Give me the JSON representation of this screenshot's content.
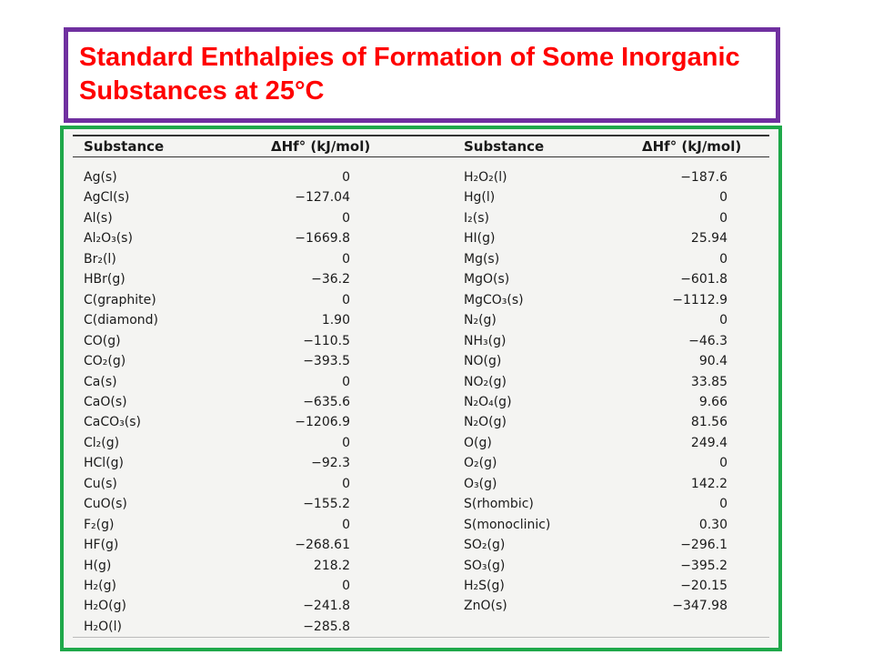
{
  "title": "Standard Enthalpies of Formation of Some Inorganic Substances at 25°C",
  "table": {
    "headers": [
      "Substance",
      "ΔHf° (kJ/mol)",
      "Substance",
      "ΔHf° (kJ/mol)"
    ],
    "left": [
      {
        "substance": "Ag(s)",
        "value": "0"
      },
      {
        "substance": "AgCl(s)",
        "value": "−127.04"
      },
      {
        "substance": "Al(s)",
        "value": "0"
      },
      {
        "substance": "Al₂O₃(s)",
        "value": "−1669.8"
      },
      {
        "substance": "Br₂(l)",
        "value": "0"
      },
      {
        "substance": "HBr(g)",
        "value": "−36.2"
      },
      {
        "substance": "C(graphite)",
        "value": "0"
      },
      {
        "substance": "C(diamond)",
        "value": "1.90"
      },
      {
        "substance": "CO(g)",
        "value": "−110.5"
      },
      {
        "substance": "CO₂(g)",
        "value": "−393.5"
      },
      {
        "substance": "Ca(s)",
        "value": "0"
      },
      {
        "substance": "CaO(s)",
        "value": "−635.6"
      },
      {
        "substance": "CaCO₃(s)",
        "value": "−1206.9"
      },
      {
        "substance": "Cl₂(g)",
        "value": "0"
      },
      {
        "substance": "HCl(g)",
        "value": "−92.3"
      },
      {
        "substance": "Cu(s)",
        "value": "0"
      },
      {
        "substance": "CuO(s)",
        "value": "−155.2"
      },
      {
        "substance": "F₂(g)",
        "value": "0"
      },
      {
        "substance": "HF(g)",
        "value": "−268.61"
      },
      {
        "substance": "H(g)",
        "value": "218.2"
      },
      {
        "substance": "H₂(g)",
        "value": "0"
      },
      {
        "substance": "H₂O(g)",
        "value": "−241.8"
      },
      {
        "substance": "H₂O(l)",
        "value": "−285.8"
      }
    ],
    "right": [
      {
        "substance": "H₂O₂(l)",
        "value": "−187.6"
      },
      {
        "substance": "Hg(l)",
        "value": "0"
      },
      {
        "substance": "I₂(s)",
        "value": "0"
      },
      {
        "substance": "HI(g)",
        "value": "25.94"
      },
      {
        "substance": "Mg(s)",
        "value": "0"
      },
      {
        "substance": "MgO(s)",
        "value": "−601.8"
      },
      {
        "substance": "MgCO₃(s)",
        "value": "−1112.9"
      },
      {
        "substance": "N₂(g)",
        "value": "0"
      },
      {
        "substance": "NH₃(g)",
        "value": "−46.3"
      },
      {
        "substance": "NO(g)",
        "value": "90.4"
      },
      {
        "substance": "NO₂(g)",
        "value": "33.85"
      },
      {
        "substance": "N₂O₄(g)",
        "value": "9.66"
      },
      {
        "substance": "N₂O(g)",
        "value": "81.56"
      },
      {
        "substance": "O(g)",
        "value": "249.4"
      },
      {
        "substance": "O₂(g)",
        "value": "0"
      },
      {
        "substance": "O₃(g)",
        "value": "142.2"
      },
      {
        "substance": "S(rhombic)",
        "value": "0"
      },
      {
        "substance": "S(monoclinic)",
        "value": "0.30"
      },
      {
        "substance": "SO₂(g)",
        "value": "−296.1"
      },
      {
        "substance": "SO₃(g)",
        "value": "−395.2"
      },
      {
        "substance": "H₂S(g)",
        "value": "−20.15"
      },
      {
        "substance": "ZnO(s)",
        "value": "−347.98"
      }
    ]
  }
}
